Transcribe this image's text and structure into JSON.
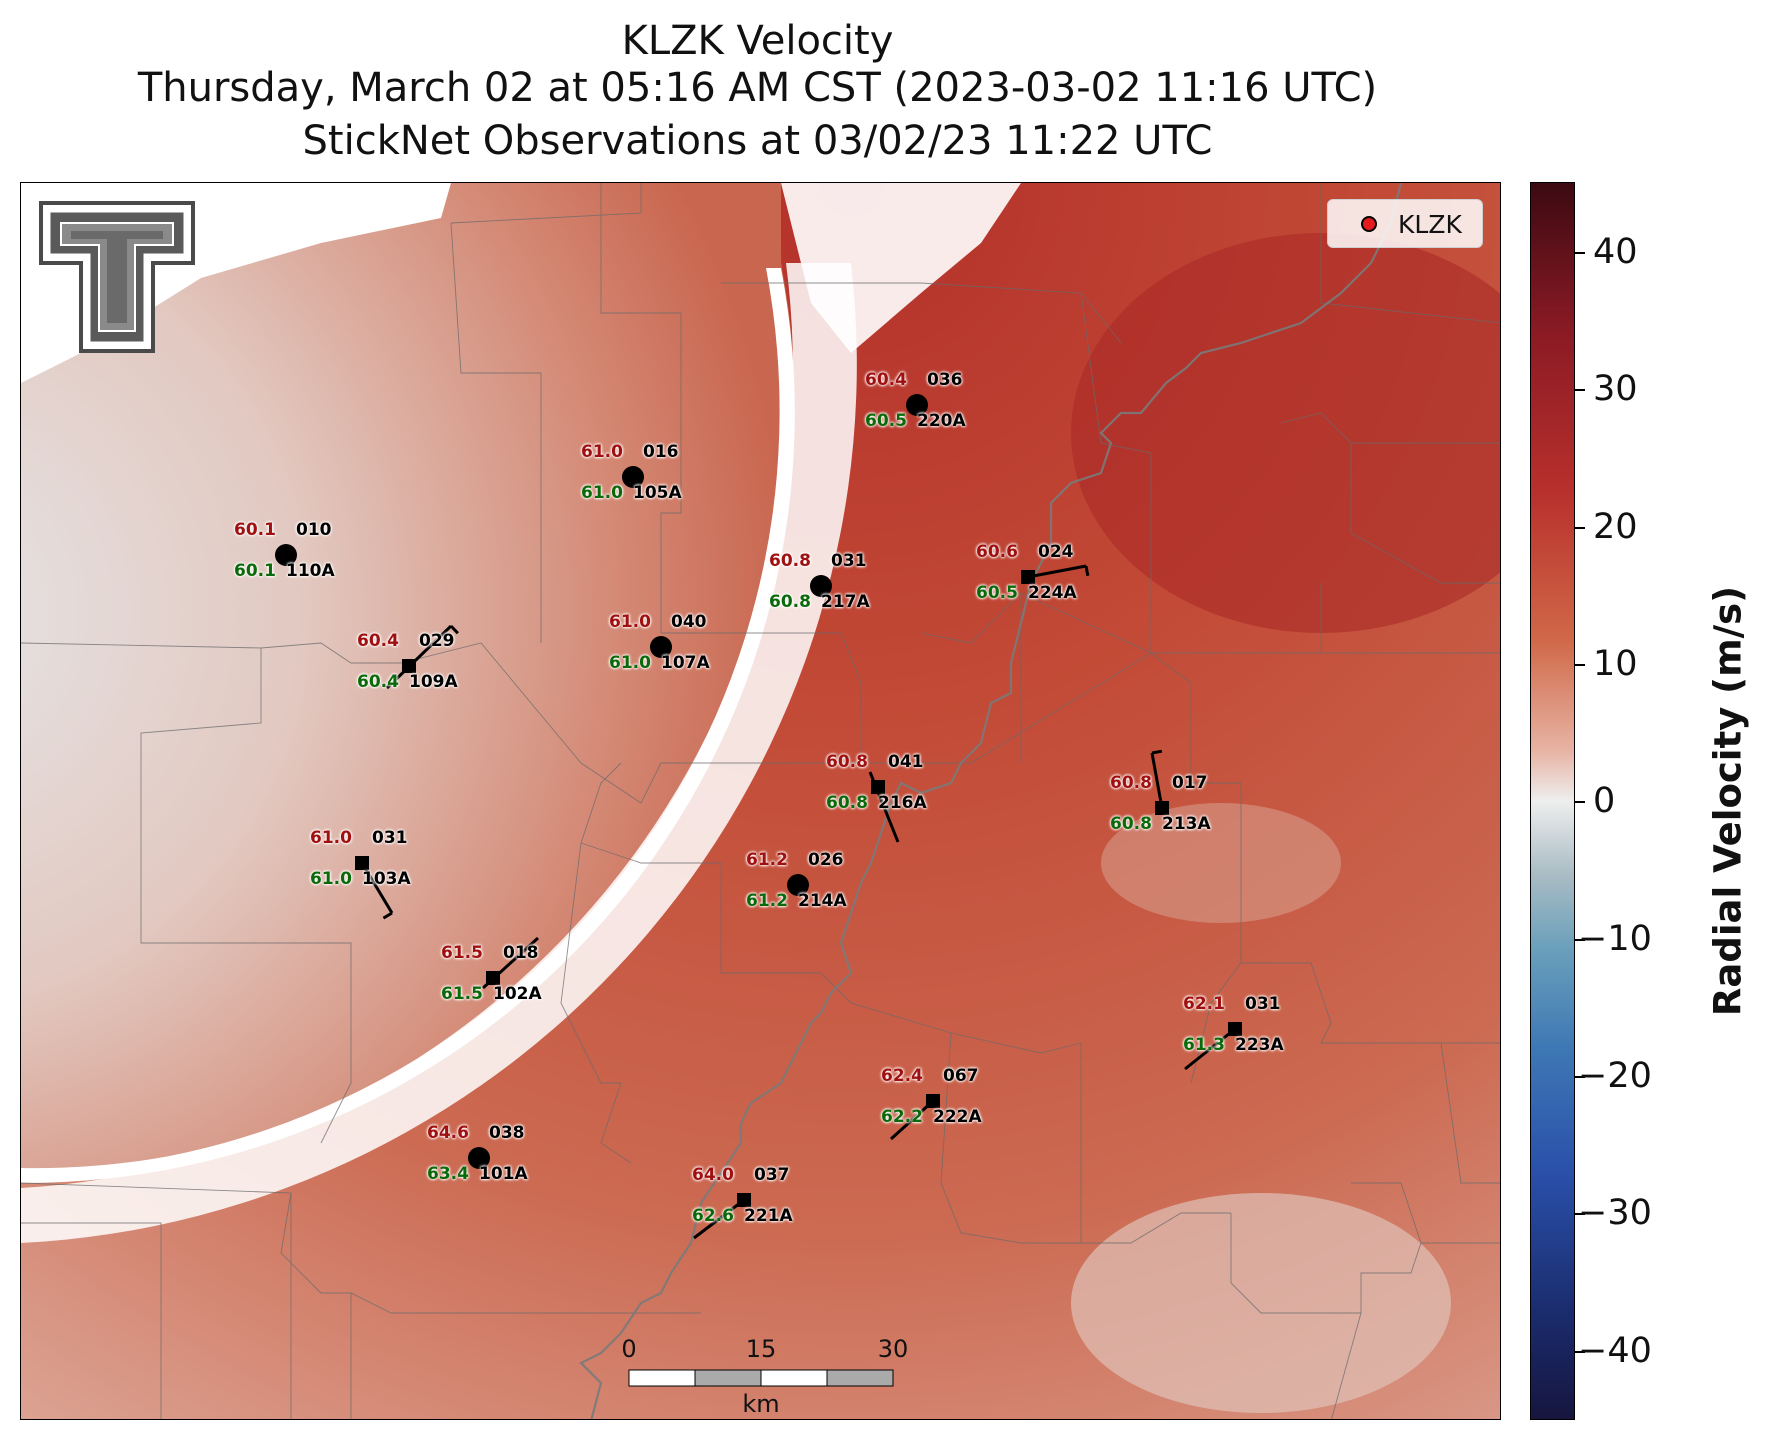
{
  "header": {
    "title": "KLZK Velocity",
    "subtitle": "Thursday, March 02 at 05:16 AM CST (2023-03-02 11:16 UTC)",
    "observations": "StickNet Observations at 03/02/23 11:22 UTC"
  },
  "legend": {
    "label": "KLZK",
    "marker_color": "#e41a1c"
  },
  "colorbar": {
    "title": "Radial Velocity (m/s)",
    "ticks": [
      "40",
      "30",
      "20",
      "10",
      "0",
      "−10",
      "−20",
      "−30",
      "−40"
    ],
    "range": [
      -45,
      45
    ]
  },
  "scalebar": {
    "labels": [
      "0",
      "15",
      "30"
    ],
    "unit": "km"
  },
  "logo": {
    "name": "texas-tech-double-t-logo"
  },
  "colors": {
    "temperature": "#a01010",
    "dewpoint": "#0a6a0a",
    "id_text": "#000000"
  },
  "stations": [
    {
      "temp": "60.4",
      "dew": "60.5",
      "wdir": "036",
      "id": "220A"
    },
    {
      "temp": "61.0",
      "dew": "61.0",
      "wdir": "016",
      "id": "105A"
    },
    {
      "temp": "60.1",
      "dew": "60.1",
      "wdir": "010",
      "id": "110A"
    },
    {
      "temp": "60.8",
      "dew": "60.8",
      "wdir": "031",
      "id": "217A"
    },
    {
      "temp": "60.6",
      "dew": "60.5",
      "wdir": "024",
      "id": "224A"
    },
    {
      "temp": "60.4",
      "dew": "60.4",
      "wdir": "029",
      "id": "109A"
    },
    {
      "temp": "61.0",
      "dew": "61.0",
      "wdir": "040",
      "id": "107A"
    },
    {
      "temp": "60.8",
      "dew": "60.8",
      "wdir": "041",
      "id": "216A"
    },
    {
      "temp": "60.8",
      "dew": "60.8",
      "wdir": "017",
      "id": "213A"
    },
    {
      "temp": "61.0",
      "dew": "61.0",
      "wdir": "031",
      "id": "103A"
    },
    {
      "temp": "61.2",
      "dew": "61.2",
      "wdir": "026",
      "id": "214A"
    },
    {
      "temp": "61.5",
      "dew": "61.5",
      "wdir": "018",
      "id": "102A"
    },
    {
      "temp": "62.1",
      "dew": "61.3",
      "wdir": "031",
      "id": "223A"
    },
    {
      "temp": "62.4",
      "dew": "62.2",
      "wdir": "067",
      "id": "222A"
    },
    {
      "temp": "64.6",
      "dew": "63.4",
      "wdir": "038",
      "id": "101A"
    },
    {
      "temp": "64.0",
      "dew": "62.6",
      "wdir": "037",
      "id": "221A"
    }
  ]
}
